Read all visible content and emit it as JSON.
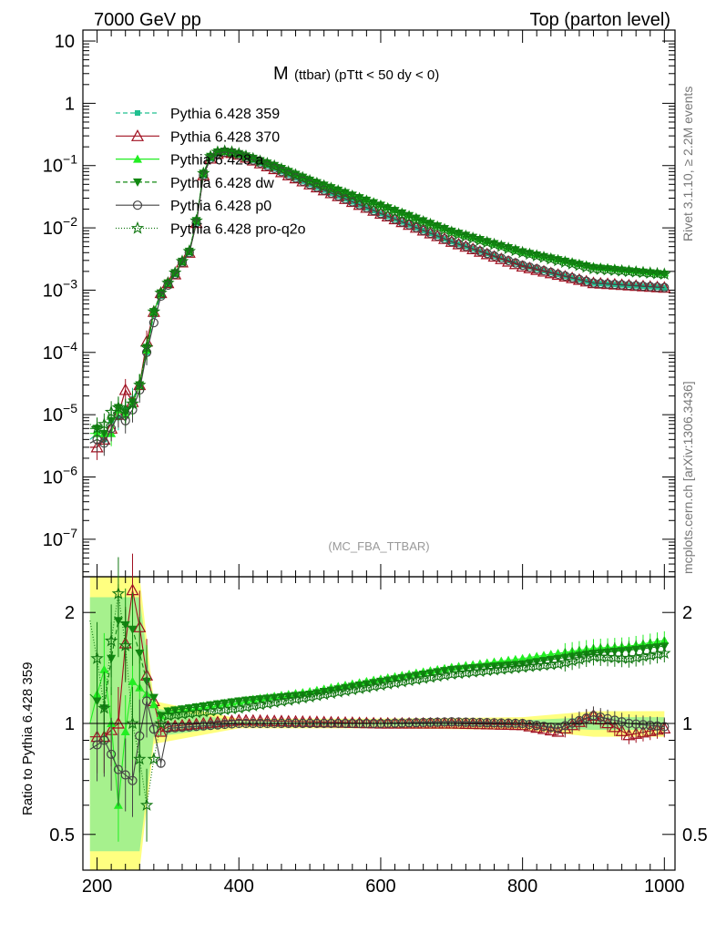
{
  "header": {
    "left": "7000 GeV pp",
    "right": "Top (parton level)"
  },
  "side_labels": {
    "rivet": "Rivet 3.1.10, ≥ 2.2M events",
    "mcplots": "mcplots.cern.ch [arXiv:1306.3436]"
  },
  "colors": {
    "pythia_359": "#20c090",
    "pythia_370": "#a01020",
    "pythia_a": "#22ee22",
    "pythia_dw": "#118811",
    "pythia_p0": "#444444",
    "pythia_proq2o": "#117711",
    "ref_band_outer": "#ffff80",
    "ref_band_inner": "#90ee90"
  },
  "chart_data": [
    {
      "type": "line",
      "title": "M",
      "title_suffix": "(ttbar) (pTtt < 50 dy < 0)",
      "watermark": "(MC_FBA_TTBAR)",
      "xlim": [
        180,
        1015
      ],
      "ylim": [
        2.5e-08,
        15
      ],
      "yscale": "log",
      "ylabel": "",
      "y_ticks": [
        {
          "value": 10,
          "base": "10",
          "exp": ""
        },
        {
          "value": 1,
          "base": "1",
          "exp": ""
        },
        {
          "value": 0.1,
          "base": "10",
          "exp": "−1"
        },
        {
          "value": 0.01,
          "base": "10",
          "exp": "−2"
        },
        {
          "value": 0.001,
          "base": "10",
          "exp": "−3"
        },
        {
          "value": 0.0001,
          "base": "10",
          "exp": "−4"
        },
        {
          "value": 1e-05,
          "base": "10",
          "exp": "−5"
        },
        {
          "value": 1e-06,
          "base": "10",
          "exp": "−6"
        },
        {
          "value": 1e-07,
          "base": "10",
          "exp": "−7"
        }
      ],
      "legend_position": "top-left",
      "series": [
        {
          "name": "Pythia 6.428 359",
          "color_key": "pythia_359",
          "marker": "square",
          "dash": "5,3",
          "shape": {
            "x": [
              190,
              200,
              210,
              220,
              230,
              240,
              250,
              260,
              270,
              280,
              290,
              300,
              310,
              320,
              330,
              340,
              350,
              360,
              370,
              380,
              390,
              400,
              450,
              500,
              600,
              700,
              800,
              900,
              1000
            ],
            "y": [
              4e-06,
              5e-06,
              4e-06,
              8e-06,
              9e-06,
              1.2e-05,
              1.8e-05,
              3e-05,
              0.0001,
              0.0004,
              0.0008,
              0.0012,
              0.0018,
              0.0028,
              0.004,
              0.012,
              0.07,
              0.13,
              0.155,
              0.165,
              0.16,
              0.15,
              0.09,
              0.05,
              0.017,
              0.006,
              0.0025,
              0.0013,
              0.0011
            ]
          }
        },
        {
          "name": "Pythia 6.428 370",
          "color_key": "pythia_370",
          "marker": "triangle-open",
          "dash": "",
          "shape": {
            "x": [
              190,
              200,
              210,
              220,
              230,
              240,
              250,
              260,
              270,
              280,
              290,
              300,
              310,
              320,
              330,
              340,
              350,
              360,
              370,
              380,
              390,
              400,
              450,
              500,
              600,
              700,
              800,
              900,
              1000
            ],
            "y": [
              3e-06,
              3e-06,
              4e-06,
              6e-06,
              1e-05,
              2.5e-05,
              1.6e-05,
              3e-05,
              0.00015,
              0.00045,
              0.0009,
              0.0013,
              0.0018,
              0.0028,
              0.004,
              0.012,
              0.07,
              0.13,
              0.155,
              0.165,
              0.16,
              0.15,
              0.088,
              0.05,
              0.017,
              0.006,
              0.0024,
              0.0013,
              0.0011
            ]
          }
        },
        {
          "name": "Pythia 6.428 a",
          "color_key": "pythia_a",
          "marker": "triangle",
          "dash": "",
          "shape": {
            "x": [
              190,
              200,
              210,
              220,
              230,
              240,
              250,
              260,
              270,
              280,
              290,
              300,
              310,
              320,
              330,
              340,
              350,
              360,
              370,
              380,
              390,
              400,
              450,
              500,
              600,
              700,
              800,
              900,
              1000
            ],
            "y": [
              5e-06,
              5e-06,
              5e-06,
              5e-06,
              1.2e-05,
              1e-05,
              1.5e-05,
              3e-05,
              0.00011,
              0.00045,
              0.0009,
              0.0013,
              0.0019,
              0.0029,
              0.0042,
              0.013,
              0.075,
              0.14,
              0.165,
              0.17,
              0.165,
              0.155,
              0.1,
              0.06,
              0.024,
              0.009,
              0.0042,
              0.0024,
              0.0019
            ]
          }
        },
        {
          "name": "Pythia 6.428 dw",
          "color_key": "pythia_dw",
          "marker": "triangle-down",
          "dash": "5,3",
          "shape": {
            "x": [
              190,
              200,
              210,
              220,
              230,
              240,
              250,
              260,
              270,
              280,
              290,
              300,
              310,
              320,
              330,
              340,
              350,
              360,
              370,
              380,
              390,
              400,
              450,
              500,
              600,
              700,
              800,
              900,
              1000
            ],
            "y": [
              6e-06,
              6e-06,
              5e-06,
              8e-06,
              1.3e-05,
              1.1e-05,
              1.6e-05,
              3e-05,
              0.00012,
              0.00045,
              0.0009,
              0.0013,
              0.0019,
              0.0029,
              0.0042,
              0.013,
              0.075,
              0.14,
              0.165,
              0.17,
              0.165,
              0.155,
              0.1,
              0.058,
              0.023,
              0.0088,
              0.0041,
              0.0023,
              0.0018
            ]
          }
        },
        {
          "name": "Pythia 6.428 p0",
          "color_key": "pythia_p0",
          "marker": "circle-open",
          "dash": "",
          "shape": {
            "x": [
              190,
              200,
              210,
              220,
              230,
              240,
              250,
              260,
              270,
              280,
              290,
              300,
              310,
              320,
              330,
              340,
              350,
              360,
              370,
              380,
              390,
              400,
              450,
              500,
              600,
              700,
              800,
              900,
              1000
            ],
            "y": [
              3.5e-06,
              4e-06,
              3.5e-06,
              6e-06,
              1e-05,
              8e-06,
              1.2e-05,
              2.5e-05,
              0.0001,
              0.0003,
              0.0008,
              0.0012,
              0.0018,
              0.0028,
              0.004,
              0.012,
              0.07,
              0.13,
              0.155,
              0.165,
              0.16,
              0.15,
              0.09,
              0.05,
              0.017,
              0.006,
              0.0025,
              0.0013,
              0.0011
            ]
          }
        },
        {
          "name": "Pythia 6.428 pro-q2o",
          "color_key": "pythia_proq2o",
          "marker": "star",
          "dash": "1,2",
          "shape": {
            "x": [
              190,
              200,
              210,
              220,
              230,
              240,
              250,
              260,
              270,
              280,
              290,
              300,
              310,
              320,
              330,
              340,
              350,
              360,
              370,
              380,
              390,
              400,
              450,
              500,
              600,
              700,
              800,
              900,
              1000
            ],
            "y": [
              7e-06,
              6e-06,
              7e-06,
              1.1e-05,
              1.3e-05,
              1.2e-05,
              1.5e-05,
              3e-05,
              0.00012,
              0.00045,
              0.0009,
              0.0013,
              0.0019,
              0.0029,
              0.0042,
              0.013,
              0.075,
              0.14,
              0.165,
              0.17,
              0.165,
              0.155,
              0.098,
              0.057,
              0.022,
              0.0085,
              0.004,
              0.0022,
              0.0018
            ]
          }
        }
      ]
    },
    {
      "type": "line",
      "xlabel": "",
      "ylabel": "Ratio to Pythia 6.428 359",
      "xlim": [
        180,
        1015
      ],
      "ylim": [
        0.4,
        2.5
      ],
      "yscale": "log",
      "x_ticks": [
        {
          "value": 200,
          "label": "200"
        },
        {
          "value": 400,
          "label": "400"
        },
        {
          "value": 600,
          "label": "600"
        },
        {
          "value": 800,
          "label": "800"
        },
        {
          "value": 1000,
          "label": "1000"
        }
      ],
      "y_ticks": [
        {
          "value": 2,
          "label": "2"
        },
        {
          "value": 1,
          "label": "1"
        },
        {
          "value": 0.5,
          "label": "0.5"
        }
      ],
      "series": [
        {
          "name": "Pythia 6.428 370",
          "color_key": "pythia_370",
          "x": [
            190,
            210,
            230,
            250,
            270,
            290,
            300,
            400,
            500,
            600,
            700,
            800,
            850,
            900,
            950,
            1000
          ],
          "y": [
            0.92,
            0.92,
            1.0,
            2.3,
            1.35,
            0.95,
            0.98,
            1.02,
            1.01,
            1.0,
            1.0,
            0.99,
            0.95,
            1.05,
            0.93,
            0.97
          ]
        },
        {
          "name": "Pythia 6.428 a",
          "color_key": "pythia_a",
          "x": [
            190,
            210,
            230,
            250,
            270,
            290,
            300,
            400,
            500,
            600,
            700,
            800,
            850,
            900,
            950,
            1000
          ],
          "y": [
            1.0,
            1.4,
            0.6,
            1.3,
            1.2,
            1.05,
            1.08,
            1.15,
            1.22,
            1.32,
            1.42,
            1.5,
            1.55,
            1.6,
            1.62,
            1.68
          ]
        },
        {
          "name": "Pythia 6.428 dw",
          "color_key": "pythia_dw",
          "x": [
            190,
            210,
            230,
            250,
            270,
            290,
            300,
            400,
            500,
            600,
            700,
            800,
            850,
            900,
            950,
            1000
          ],
          "y": [
            1.2,
            1.1,
            1.9,
            1.8,
            1.3,
            1.05,
            1.08,
            1.15,
            1.2,
            1.3,
            1.4,
            1.45,
            1.5,
            1.55,
            1.58,
            1.62
          ]
        },
        {
          "name": "Pythia 6.428 p0",
          "color_key": "pythia_p0",
          "x": [
            190,
            210,
            230,
            250,
            270,
            290,
            300,
            400,
            500,
            600,
            700,
            800,
            850,
            900,
            950,
            1000
          ],
          "y": [
            0.85,
            0.9,
            0.75,
            0.7,
            1.15,
            0.78,
            0.97,
            1.0,
            1.0,
            1.0,
            1.01,
            1.0,
            0.97,
            1.05,
            1.0,
            0.98
          ]
        },
        {
          "name": "Pythia 6.428 pro-q2o",
          "color_key": "pythia_proq2o",
          "x": [
            190,
            210,
            230,
            250,
            270,
            290,
            300,
            400,
            500,
            600,
            700,
            800,
            850,
            900,
            950,
            1000
          ],
          "y": [
            1.9,
            1.1,
            2.25,
            1.0,
            0.6,
            1.0,
            1.05,
            1.1,
            1.18,
            1.27,
            1.36,
            1.42,
            1.45,
            1.52,
            1.5,
            1.55
          ]
        }
      ]
    }
  ]
}
